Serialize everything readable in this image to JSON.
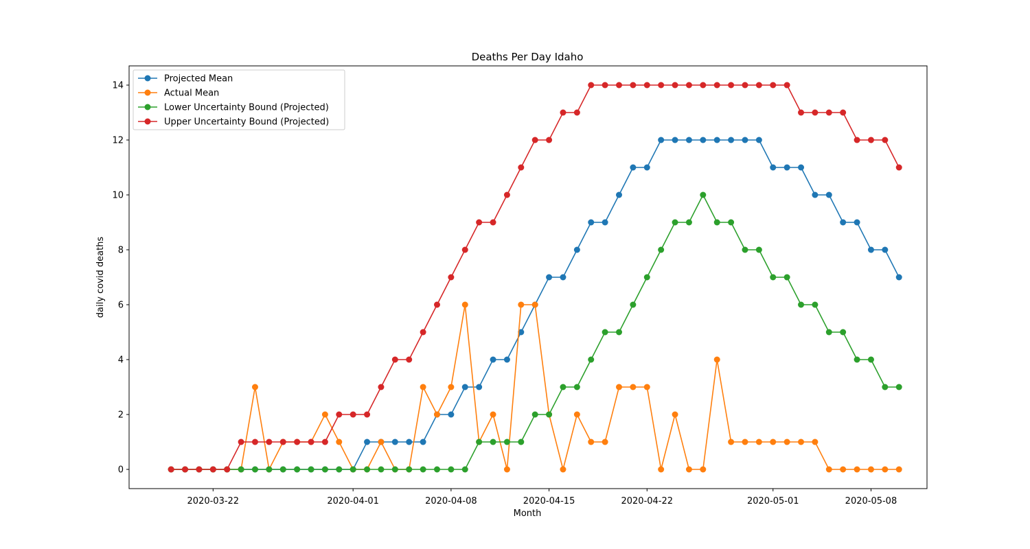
{
  "chart_data": {
    "type": "line",
    "title": "Deaths Per Day Idaho",
    "xlabel": "Month",
    "ylabel": "daily covid deaths",
    "x_start": "2020-03-19",
    "x_end": "2020-05-09",
    "xlim": [
      "2020-03-16",
      "2020-05-12"
    ],
    "ylim": [
      -0.7,
      14.7
    ],
    "x_ticks": [
      "2020-03-22",
      "2020-04-01",
      "2020-04-08",
      "2020-04-15",
      "2020-04-22",
      "2020-05-01",
      "2020-05-08"
    ],
    "y_ticks": [
      0,
      2,
      4,
      6,
      8,
      10,
      12,
      14
    ],
    "grid": false,
    "legend_position": "upper-left",
    "series": [
      {
        "name": "Projected Mean",
        "color": "#1f77b4",
        "values": [
          0,
          0,
          0,
          0,
          0,
          0,
          0,
          0,
          0,
          0,
          0,
          0,
          0,
          0,
          1,
          1,
          1,
          1,
          1,
          2,
          2,
          3,
          3,
          4,
          4,
          5,
          6,
          7,
          7,
          8,
          9,
          9,
          10,
          11,
          11,
          12,
          12,
          12,
          12,
          12,
          12,
          12,
          12,
          11,
          11,
          11,
          10,
          10,
          9,
          9,
          8,
          8,
          7
        ]
      },
      {
        "name": "Actual Mean",
        "color": "#ff7f0e",
        "values": [
          0,
          0,
          0,
          0,
          0,
          0,
          3,
          0,
          1,
          1,
          1,
          2,
          1,
          0,
          0,
          1,
          0,
          0,
          3,
          2,
          3,
          6,
          1,
          2,
          0,
          6,
          6,
          2,
          0,
          2,
          1,
          1,
          3,
          3,
          3,
          0,
          2,
          0,
          0,
          4,
          1,
          1,
          1,
          1,
          1,
          1,
          1,
          0,
          0,
          0,
          0,
          0,
          0
        ]
      },
      {
        "name": "Lower Uncertainty Bound (Projected)",
        "color": "#2ca02c",
        "values": [
          0,
          0,
          0,
          0,
          0,
          0,
          0,
          0,
          0,
          0,
          0,
          0,
          0,
          0,
          0,
          0,
          0,
          0,
          0,
          0,
          0,
          0,
          1,
          1,
          1,
          1,
          2,
          2,
          3,
          3,
          4,
          5,
          5,
          6,
          7,
          8,
          9,
          9,
          10,
          9,
          9,
          8,
          8,
          7,
          7,
          6,
          6,
          5,
          5,
          4,
          4,
          3,
          3
        ]
      },
      {
        "name": "Upper Uncertainty Bound (Projected)",
        "color": "#d62728",
        "values": [
          0,
          0,
          0,
          0,
          0,
          1,
          1,
          1,
          1,
          1,
          1,
          1,
          2,
          2,
          2,
          3,
          4,
          4,
          5,
          6,
          7,
          8,
          9,
          9,
          10,
          11,
          12,
          12,
          13,
          13,
          14,
          14,
          14,
          14,
          14,
          14,
          14,
          14,
          14,
          14,
          14,
          14,
          14,
          14,
          14,
          13,
          13,
          13,
          13,
          12,
          12,
          12,
          11
        ]
      }
    ]
  }
}
